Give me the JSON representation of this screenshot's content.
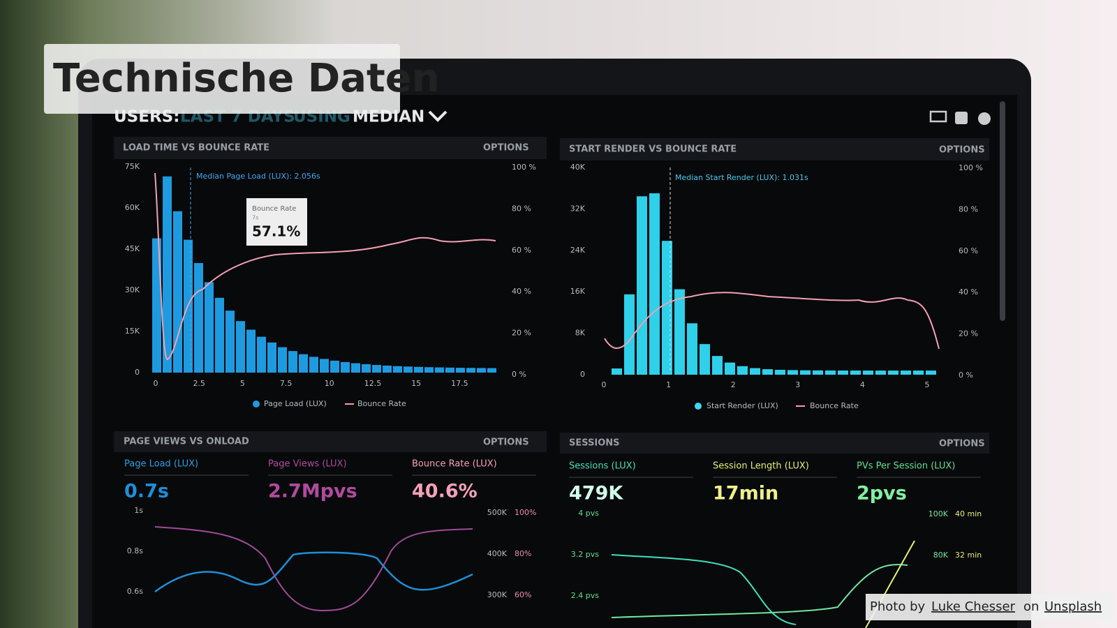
{
  "overlay": {
    "title": "Technische Daten",
    "credit": {
      "prefix": "Photo by",
      "author": "Luke Chesser",
      "middle": "on",
      "site": "Unsplash"
    }
  },
  "dashboard": {
    "header": {
      "users": "USERS:",
      "range": "LAST 7 DAYS",
      "using": "USING",
      "method": "MEDIAN"
    },
    "panels": [
      {
        "title": "LOAD TIME VS BOUNCE RATE",
        "options": "OPTIONS",
        "left_ticks": [
          "75K",
          "60K",
          "45K",
          "30K",
          "15K",
          "0"
        ],
        "right_ticks": [
          "100 %",
          "80 %",
          "60 %",
          "40 %",
          "20 %",
          "0 %"
        ],
        "x_ticks": [
          "0",
          "2.5",
          "5",
          "7.5",
          "10",
          "12.5",
          "15",
          "17.5"
        ],
        "median": "Median Page Load (LUX): 2.056s",
        "tooltip": {
          "label": "Bounce Rate",
          "sub": "7s",
          "value": "57.1%"
        },
        "legend": [
          "Page Load (LUX)",
          "Bounce Rate"
        ]
      },
      {
        "title": "START RENDER VS BOUNCE RATE",
        "options": "OPTIONS",
        "left_ticks": [
          "40K",
          "32K",
          "24K",
          "16K",
          "8K",
          "0"
        ],
        "right_ticks": [
          "100 %",
          "80 %",
          "60 %",
          "40 %",
          "20 %",
          "0 %"
        ],
        "x_ticks": [
          "0",
          "1",
          "2",
          "3",
          "4",
          "5"
        ],
        "median": "Median Start Render (LUX): 1.031s",
        "legend": [
          "Start Render (LUX)",
          "Bounce Rate"
        ]
      },
      {
        "title": "PAGE VIEWS VS ONLOAD",
        "options": "OPTIONS",
        "metrics": [
          {
            "label": "Page Load (LUX)",
            "value": "0.7s"
          },
          {
            "label": "Page Views (LUX)",
            "value": "2.7Mpvs"
          },
          {
            "label": "Bounce Rate (LUX)",
            "value": "40.6%"
          }
        ],
        "left_ticks": [
          "1s",
          "0.8s",
          "0.6s"
        ],
        "right_ticks_a": [
          "500K",
          "400K",
          "300K"
        ],
        "right_ticks_b": [
          "100%",
          "80%",
          "60%"
        ]
      },
      {
        "title": "SESSIONS",
        "options": "OPTIONS",
        "metrics": [
          {
            "label": "Sessions (LUX)",
            "value": "479K"
          },
          {
            "label": "Session Length (LUX)",
            "value": "17min"
          },
          {
            "label": "PVs Per Session (LUX)",
            "value": "2pvs"
          }
        ],
        "left_ticks": [
          "4 pvs",
          "3.2 pvs",
          "2.4 pvs"
        ],
        "right_ticks_a": [
          "100K",
          "80K"
        ],
        "right_ticks_b": [
          "40 min",
          "32 min"
        ]
      }
    ]
  }
}
